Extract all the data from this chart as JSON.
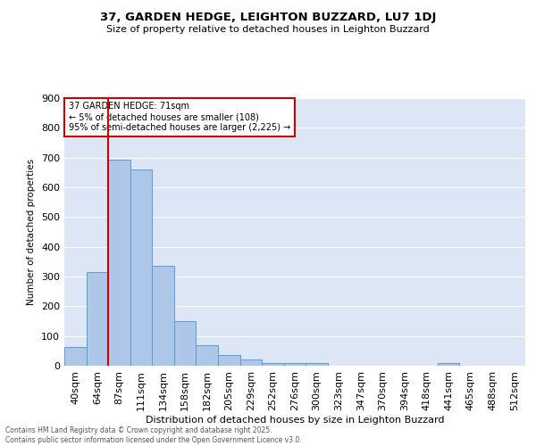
{
  "title": "37, GARDEN HEDGE, LEIGHTON BUZZARD, LU7 1DJ",
  "subtitle": "Size of property relative to detached houses in Leighton Buzzard",
  "xlabel": "Distribution of detached houses by size in Leighton Buzzard",
  "ylabel": "Number of detached properties",
  "bar_labels": [
    "40sqm",
    "64sqm",
    "87sqm",
    "111sqm",
    "134sqm",
    "158sqm",
    "182sqm",
    "205sqm",
    "229sqm",
    "252sqm",
    "276sqm",
    "300sqm",
    "323sqm",
    "347sqm",
    "370sqm",
    "394sqm",
    "418sqm",
    "441sqm",
    "465sqm",
    "488sqm",
    "512sqm"
  ],
  "bar_values": [
    62,
    314,
    693,
    660,
    335,
    150,
    68,
    35,
    22,
    10,
    8,
    10,
    0,
    0,
    0,
    0,
    0,
    10,
    0,
    0,
    0
  ],
  "bar_color": "#aec6e8",
  "bar_edge_color": "#5b9bd5",
  "vline_x": 1.5,
  "vline_color": "#cc0000",
  "annotation_text": "37 GARDEN HEDGE: 71sqm\n← 5% of detached houses are smaller (108)\n95% of semi-detached houses are larger (2,225) →",
  "annotation_box_color": "#cc0000",
  "ylim": [
    0,
    900
  ],
  "yticks": [
    0,
    100,
    200,
    300,
    400,
    500,
    600,
    700,
    800,
    900
  ],
  "background_color": "#dce6f5",
  "footer_line1": "Contains HM Land Registry data © Crown copyright and database right 2025.",
  "footer_line2": "Contains public sector information licensed under the Open Government Licence v3.0."
}
